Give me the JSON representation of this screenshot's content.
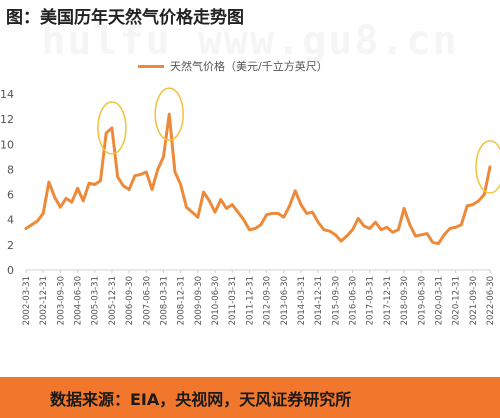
{
  "title": "图：美国历年天然气价格走势图",
  "watermark": "hulfu www.gu8.cn",
  "source_text": "数据来源：EIA，央视网，天风证券研究所",
  "colors": {
    "line": "#ed8a3a",
    "highlight": "#f3c23a",
    "footer": "#f0772b"
  },
  "chart_data": {
    "type": "line",
    "series": [
      {
        "name": "天然气价格（美元/千立方英尺）",
        "x": [
          "2002-03-31",
          "2002-06-30",
          "2002-09-30",
          "2002-12-31",
          "2003-03-31",
          "2003-06-30",
          "2003-09-30",
          "2003-12-31",
          "2004-03-31",
          "2004-06-30",
          "2004-09-30",
          "2004-12-31",
          "2005-03-31",
          "2005-06-30",
          "2005-09-30",
          "2005-12-31",
          "2006-03-31",
          "2006-06-30",
          "2006-09-30",
          "2006-12-31",
          "2007-03-31",
          "2007-06-30",
          "2007-09-30",
          "2007-12-31",
          "2008-03-31",
          "2008-06-30",
          "2008-09-30",
          "2008-12-31",
          "2009-03-31",
          "2009-06-30",
          "2009-09-30",
          "2009-12-31",
          "2010-03-31",
          "2010-06-30",
          "2010-09-30",
          "2010-12-31",
          "2011-03-31",
          "2011-06-30",
          "2011-09-30",
          "2011-12-31",
          "2012-03-31",
          "2012-06-30",
          "2012-09-30",
          "2012-12-31",
          "2013-03-31",
          "2013-06-30",
          "2013-09-30",
          "2013-12-31",
          "2014-03-31",
          "2014-06-30",
          "2014-09-30",
          "2014-12-31",
          "2015-03-31",
          "2015-06-30",
          "2015-09-30",
          "2015-12-31",
          "2016-03-31",
          "2016-06-30",
          "2016-09-30",
          "2016-12-31",
          "2017-03-31",
          "2017-06-30",
          "2017-09-30",
          "2017-12-31",
          "2018-03-31",
          "2018-06-30",
          "2018-09-30",
          "2018-12-31",
          "2019-03-31",
          "2019-06-30",
          "2019-09-30",
          "2019-12-31",
          "2020-03-31",
          "2020-06-30",
          "2020-09-30",
          "2020-12-31",
          "2021-03-31",
          "2021-06-30",
          "2021-09-30",
          "2021-12-31",
          "2022-03-31",
          "2022-06-30"
        ],
        "values": [
          3.3,
          3.6,
          3.9,
          4.5,
          7.0,
          5.8,
          5.0,
          5.7,
          5.4,
          6.5,
          5.5,
          6.9,
          6.8,
          7.1,
          10.9,
          11.3,
          7.4,
          6.7,
          6.4,
          7.5,
          7.6,
          7.8,
          6.4,
          8.0,
          9.0,
          12.4,
          7.8,
          6.8,
          5.0,
          4.6,
          4.2,
          6.2,
          5.5,
          4.6,
          5.6,
          4.9,
          5.2,
          4.6,
          4.0,
          3.2,
          3.3,
          3.6,
          4.4,
          4.5,
          4.5,
          4.2,
          5.1,
          6.3,
          5.2,
          4.5,
          4.6,
          3.8,
          3.2,
          3.1,
          2.8,
          2.3,
          2.7,
          3.2,
          4.1,
          3.5,
          3.3,
          3.8,
          3.2,
          3.4,
          3.0,
          3.2,
          4.9,
          3.6,
          2.7,
          2.8,
          2.9,
          2.2,
          2.1,
          2.8,
          3.3,
          3.4,
          3.6,
          5.1,
          5.2,
          5.5,
          6.0,
          8.2
        ]
      }
    ],
    "ylim": [
      0,
      14
    ],
    "yticks": [
      0,
      2,
      4,
      6,
      8,
      10,
      12,
      14
    ],
    "xtick_labels": [
      "2002-03-31",
      "2002-12-31",
      "2003-09-30",
      "2004-06-30",
      "2005-03-31",
      "2005-12-31",
      "2006-09-30",
      "2007-06-30",
      "2008-03-31",
      "2008-12-31",
      "2009-09-30",
      "2010-06-30",
      "2011-03-31",
      "2011-12-31",
      "2012-09-30",
      "2013-06-30",
      "2014-03-31",
      "2014-12-31",
      "2015-09-30",
      "2016-06-30",
      "2017-03-31",
      "2017-12-31",
      "2018-09-30",
      "2019-06-30",
      "2020-03-31",
      "2020-12-31",
      "2021-09-30",
      "2022-06-30"
    ],
    "grid": false,
    "legend_position": "top-center",
    "highlighted_points": [
      "2005-12-31",
      "2008-06-30",
      "2022-06-30"
    ]
  }
}
